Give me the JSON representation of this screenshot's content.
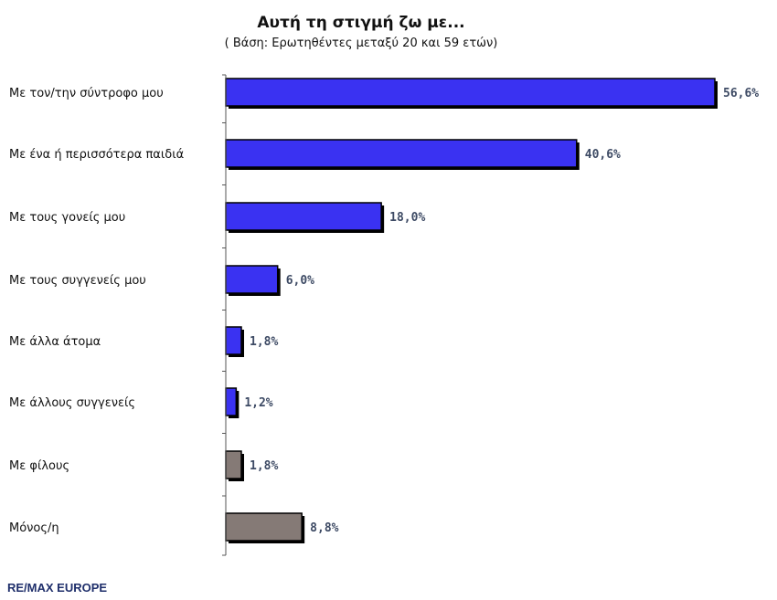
{
  "chart_data": {
    "type": "bar",
    "orientation": "horizontal",
    "title": "Αυτή τη στιγμή ζω με...",
    "subtitle": "( Βάση: Ερωτηθέντες μεταξύ 20 και 59 ετών)",
    "categories": [
      "Με τον/την σύντροφο μου",
      "Με ένα ή περισσότερα παιδιά",
      "Με τους γονείς μου",
      "Με τους συγγενείς μου",
      "Με άλλα άτομα",
      "Με άλλους συγγενείς",
      "Με φίλους",
      "Μόνος/η"
    ],
    "values": [
      56.6,
      40.6,
      18.0,
      6.0,
      1.8,
      1.2,
      1.8,
      8.8
    ],
    "value_labels": [
      "56,6%",
      "40,6%",
      "18,0%",
      "6,0%",
      "1,8%",
      "1,2%",
      "1,8%",
      "8,8%"
    ],
    "bar_colors": [
      "#3a32f2",
      "#3a32f2",
      "#3a32f2",
      "#3a32f2",
      "#3a32f2",
      "#3a32f2",
      "#857a76",
      "#857a76"
    ],
    "xlim": [
      0,
      56.6
    ],
    "grid": false,
    "legend": "none"
  },
  "footer": {
    "brand": "RE/MAX EUROPE"
  }
}
